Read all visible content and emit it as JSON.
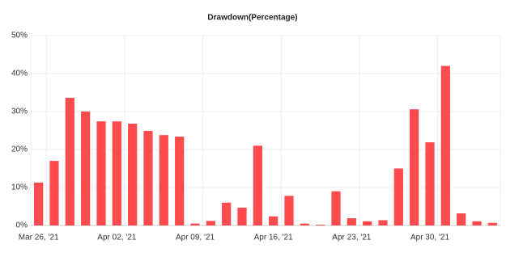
{
  "chart_data": {
    "type": "bar",
    "title": "Drawdown(Percentage)",
    "categories": [
      "Mar 26, '21",
      null,
      null,
      null,
      null,
      "Apr 02, '21",
      null,
      null,
      null,
      null,
      "Apr 09, '21",
      null,
      null,
      null,
      null,
      "Apr 16, '21",
      null,
      null,
      null,
      null,
      "Apr 23, '21",
      null,
      null,
      null,
      null,
      "Apr 30, '21",
      null,
      null,
      null,
      null
    ],
    "values": [
      11.3,
      17.0,
      33.6,
      30.0,
      27.4,
      27.4,
      26.8,
      24.9,
      23.8,
      23.4,
      0.5,
      1.2,
      6.0,
      4.7,
      21.0,
      2.4,
      7.8,
      0.5,
      0.2,
      9.0,
      1.9,
      1.1,
      1.4,
      15.0,
      30.6,
      21.9,
      42.0,
      3.2,
      1.1,
      0.7
    ],
    "color": "#ff4b4e",
    "ylim": [
      0,
      50
    ],
    "yticks": [
      {
        "value": 0,
        "label": "0%"
      },
      {
        "value": 10,
        "label": "10%"
      },
      {
        "value": 20,
        "label": "20%"
      },
      {
        "value": 30,
        "label": "30%"
      },
      {
        "value": 40,
        "label": "40%"
      },
      {
        "value": 50,
        "label": "50%"
      }
    ],
    "grid": true
  }
}
